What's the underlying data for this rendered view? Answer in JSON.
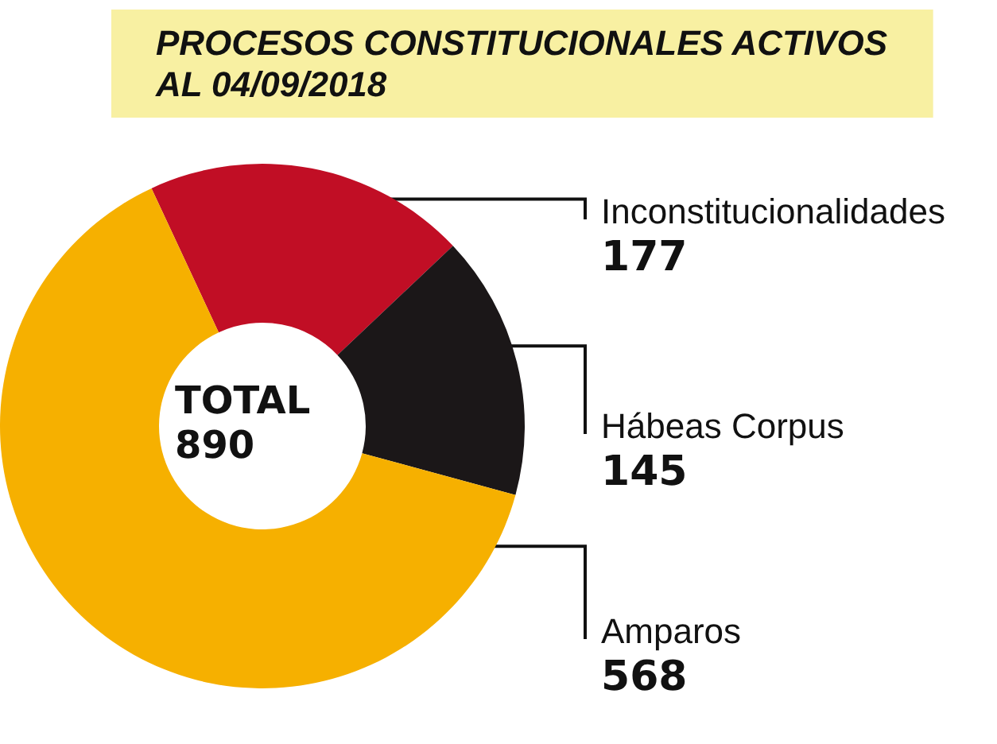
{
  "chart_data": {
    "type": "donut",
    "title": "PROCESOS CONSTITUCIONALES ACTIVOS  AL 04/09/2018",
    "categories": [
      "Inconstitucionalidades",
      "Hábeas Corpus",
      "Amparos"
    ],
    "values": [
      177,
      145,
      568
    ],
    "colors": [
      "#c10e25",
      "#1b1718",
      "#f6b000"
    ],
    "data_labels": true,
    "annotations": [
      "TOTAL 890"
    ]
  }
}
